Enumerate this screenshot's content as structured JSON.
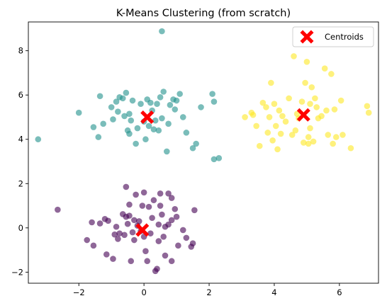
{
  "chart_data": {
    "type": "scatter",
    "title": "K-Means Clustering (from scratch)",
    "xlabel": "",
    "ylabel": "",
    "xlim": [
      -3.55,
      7.2
    ],
    "ylim": [
      -2.5,
      9.3
    ],
    "xticks": [
      -2,
      0,
      2,
      4,
      6
    ],
    "yticks": [
      -2,
      0,
      2,
      4,
      6,
      8
    ],
    "grid": false,
    "legend": {
      "placement": "top-right",
      "entries": [
        "Centroids"
      ]
    },
    "series": [
      {
        "color": "#440154",
        "points": [
          [
            -2.65,
            0.82
          ],
          [
            -1.75,
            -0.55
          ],
          [
            -1.55,
            -0.8
          ],
          [
            -1.35,
            0.2
          ],
          [
            -1.2,
            0.4
          ],
          [
            -1.1,
            0.32
          ],
          [
            -1.15,
            -1.2
          ],
          [
            -0.95,
            -1.4
          ],
          [
            -0.9,
            -0.3
          ],
          [
            -0.8,
            -0.5
          ],
          [
            -0.75,
            -0.25
          ],
          [
            -0.65,
            0.62
          ],
          [
            -0.6,
            -0.32
          ],
          [
            -0.55,
            1.85
          ],
          [
            -0.55,
            0.5
          ],
          [
            -0.5,
            0.18
          ],
          [
            -0.45,
            1.05
          ],
          [
            -0.45,
            0.55
          ],
          [
            -0.4,
            -1.5
          ],
          [
            -0.35,
            -0.2
          ],
          [
            -0.3,
            0.35
          ],
          [
            -0.25,
            1.5
          ],
          [
            -0.2,
            0.1
          ],
          [
            -0.15,
            0.3
          ],
          [
            -0.1,
            -0.15
          ],
          [
            -0.05,
            1.0
          ],
          [
            0.0,
            1.6
          ],
          [
            0.0,
            -0.4
          ],
          [
            0.05,
            -1.05
          ],
          [
            0.1,
            -1.5
          ],
          [
            0.15,
            0.95
          ],
          [
            0.2,
            -0.25
          ],
          [
            0.25,
            0.45
          ],
          [
            0.3,
            1.25
          ],
          [
            0.35,
            -1.95
          ],
          [
            0.4,
            -1.85
          ],
          [
            0.45,
            0.15
          ],
          [
            0.5,
            1.55
          ],
          [
            0.5,
            1.0
          ],
          [
            0.55,
            0.6
          ],
          [
            0.6,
            -0.4
          ],
          [
            0.65,
            -1.25
          ],
          [
            0.75,
            0.15
          ],
          [
            0.75,
            1.55
          ],
          [
            0.85,
            0.35
          ],
          [
            0.85,
            -1.5
          ],
          [
            0.85,
            1.35
          ],
          [
            1.0,
            0.5
          ],
          [
            1.05,
            -0.8
          ],
          [
            1.2,
            -0.1
          ],
          [
            1.3,
            -0.45
          ],
          [
            1.5,
            -0.7
          ],
          [
            1.55,
            0.8
          ],
          [
            1.45,
            -0.85
          ],
          [
            0.95,
            0.85
          ],
          [
            -0.3,
            -0.55
          ],
          [
            0.45,
            -0.6
          ],
          [
            0.65,
            0.05
          ],
          [
            -0.85,
            0.05
          ],
          [
            -1.6,
            0.25
          ]
        ]
      },
      {
        "color": "#21918c",
        "points": [
          [
            -3.25,
            4.0
          ],
          [
            -2.0,
            5.2
          ],
          [
            -1.55,
            4.55
          ],
          [
            -1.4,
            4.1
          ],
          [
            -1.35,
            5.95
          ],
          [
            -1.25,
            4.7
          ],
          [
            -1.0,
            5.45
          ],
          [
            -0.95,
            4.9
          ],
          [
            -0.85,
            5.7
          ],
          [
            -0.8,
            5.25
          ],
          [
            -0.75,
            5.9
          ],
          [
            -0.65,
            5.85
          ],
          [
            -0.55,
            6.1
          ],
          [
            -0.5,
            4.4
          ],
          [
            -0.45,
            5.15
          ],
          [
            -0.4,
            4.85
          ],
          [
            -0.35,
            5.75
          ],
          [
            -0.25,
            3.8
          ],
          [
            -0.2,
            4.5
          ],
          [
            -0.1,
            5.6
          ],
          [
            0.0,
            4.8
          ],
          [
            0.05,
            4.0
          ],
          [
            0.1,
            5.8
          ],
          [
            0.15,
            4.6
          ],
          [
            0.2,
            5.65
          ],
          [
            0.3,
            4.45
          ],
          [
            0.35,
            4.85
          ],
          [
            0.4,
            5.6
          ],
          [
            0.45,
            4.4
          ],
          [
            0.5,
            5.9
          ],
          [
            0.55,
            4.95
          ],
          [
            0.55,
            8.88
          ],
          [
            0.6,
            6.15
          ],
          [
            0.7,
            3.45
          ],
          [
            0.8,
            5.55
          ],
          [
            0.9,
            5.8
          ],
          [
            0.95,
            5.35
          ],
          [
            1.0,
            5.75
          ],
          [
            1.1,
            6.05
          ],
          [
            1.2,
            5.0
          ],
          [
            1.3,
            4.3
          ],
          [
            1.5,
            3.6
          ],
          [
            1.6,
            3.8
          ],
          [
            1.75,
            5.45
          ],
          [
            2.1,
            6.05
          ],
          [
            2.15,
            5.7
          ],
          [
            2.15,
            3.1
          ],
          [
            2.3,
            3.15
          ],
          [
            -0.45,
            4.25
          ],
          [
            0.25,
            5.3
          ],
          [
            -0.6,
            5.05
          ],
          [
            0.75,
            4.7
          ]
        ]
      },
      {
        "color": "#fde725",
        "points": [
          [
            3.1,
            5.0
          ],
          [
            3.3,
            5.2
          ],
          [
            3.35,
            5.1
          ],
          [
            3.45,
            4.6
          ],
          [
            3.55,
            3.7
          ],
          [
            3.65,
            5.65
          ],
          [
            3.75,
            5.45
          ],
          [
            3.8,
            4.3
          ],
          [
            3.85,
            5.0
          ],
          [
            3.9,
            6.55
          ],
          [
            3.95,
            3.95
          ],
          [
            4.0,
            5.6
          ],
          [
            4.05,
            4.6
          ],
          [
            4.1,
            3.55
          ],
          [
            4.15,
            5.3
          ],
          [
            4.25,
            5.05
          ],
          [
            4.35,
            4.8
          ],
          [
            4.45,
            5.85
          ],
          [
            4.55,
            4.2
          ],
          [
            4.6,
            7.75
          ],
          [
            4.65,
            4.4
          ],
          [
            4.7,
            5.15
          ],
          [
            4.85,
            5.7
          ],
          [
            4.9,
            3.85
          ],
          [
            4.95,
            6.55
          ],
          [
            5.0,
            7.5
          ],
          [
            5.05,
            4.1
          ],
          [
            5.1,
            5.6
          ],
          [
            5.1,
            4.5
          ],
          [
            5.15,
            6.35
          ],
          [
            5.2,
            3.9
          ],
          [
            5.25,
            5.85
          ],
          [
            5.3,
            5.45
          ],
          [
            5.35,
            4.95
          ],
          [
            5.45,
            5.05
          ],
          [
            5.55,
            7.2
          ],
          [
            5.6,
            5.3
          ],
          [
            5.65,
            4.2
          ],
          [
            5.75,
            6.95
          ],
          [
            5.8,
            3.8
          ],
          [
            5.85,
            5.35
          ],
          [
            5.9,
            4.1
          ],
          [
            6.05,
            5.75
          ],
          [
            6.1,
            4.2
          ],
          [
            6.35,
            3.6
          ],
          [
            6.85,
            5.5
          ],
          [
            6.9,
            5.2
          ],
          [
            5.05,
            3.8
          ],
          [
            4.2,
            4.25
          ],
          [
            4.75,
            4.95
          ]
        ]
      }
    ],
    "centroids": {
      "label": "Centroids",
      "color": "#ff0000",
      "points": [
        [
          -0.05,
          -0.1
        ],
        [
          0.1,
          5.0
        ],
        [
          4.9,
          5.1
        ]
      ]
    }
  }
}
